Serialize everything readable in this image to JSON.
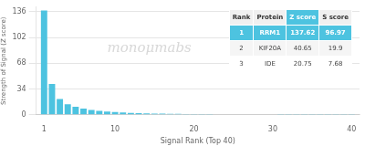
{
  "chart_data": {
    "type": "bar",
    "xlabel": "Signal Rank (Top 40)",
    "ylabel": "Strength of Signal (Z score)",
    "x": [
      1,
      2,
      3,
      4,
      5,
      6,
      7,
      8,
      9,
      10,
      11,
      12,
      13,
      14,
      15,
      16,
      17,
      18,
      19,
      20,
      21,
      22,
      23,
      24,
      25,
      26,
      27,
      28,
      29,
      30,
      31,
      32,
      33,
      34,
      35,
      36,
      37,
      38,
      39,
      40
    ],
    "values": [
      137.62,
      40.65,
      20.75,
      14.0,
      10.5,
      8.2,
      6.5,
      5.2,
      4.3,
      3.6,
      3.0,
      2.6,
      2.2,
      1.9,
      1.7,
      1.5,
      1.35,
      1.2,
      1.1,
      1.0,
      0.9,
      0.85,
      0.8,
      0.75,
      0.7,
      0.65,
      0.6,
      0.58,
      0.55,
      0.52,
      0.5,
      0.48,
      0.46,
      0.44,
      0.42,
      0.4,
      0.38,
      0.36,
      0.34,
      0.32
    ],
    "color": "#4dc3e0",
    "xlim": [
      0,
      41
    ],
    "xticks": [
      1,
      10,
      20,
      30,
      40
    ],
    "ylim": [
      0,
      142
    ],
    "yticks": [
      0,
      34,
      68,
      102,
      136
    ],
    "grid": true,
    "annotations": [
      {
        "text": "monoμmabs"
      }
    ],
    "table": {
      "header": [
        "Rank",
        "Protein",
        "Z score",
        "S score"
      ],
      "rows": [
        [
          "1",
          "RRM1",
          "137.62",
          "96.97"
        ],
        [
          "2",
          "KIF20A",
          "40.65",
          "19.9"
        ],
        [
          "3",
          "IDE",
          "20.75",
          "7.68"
        ]
      ]
    }
  }
}
